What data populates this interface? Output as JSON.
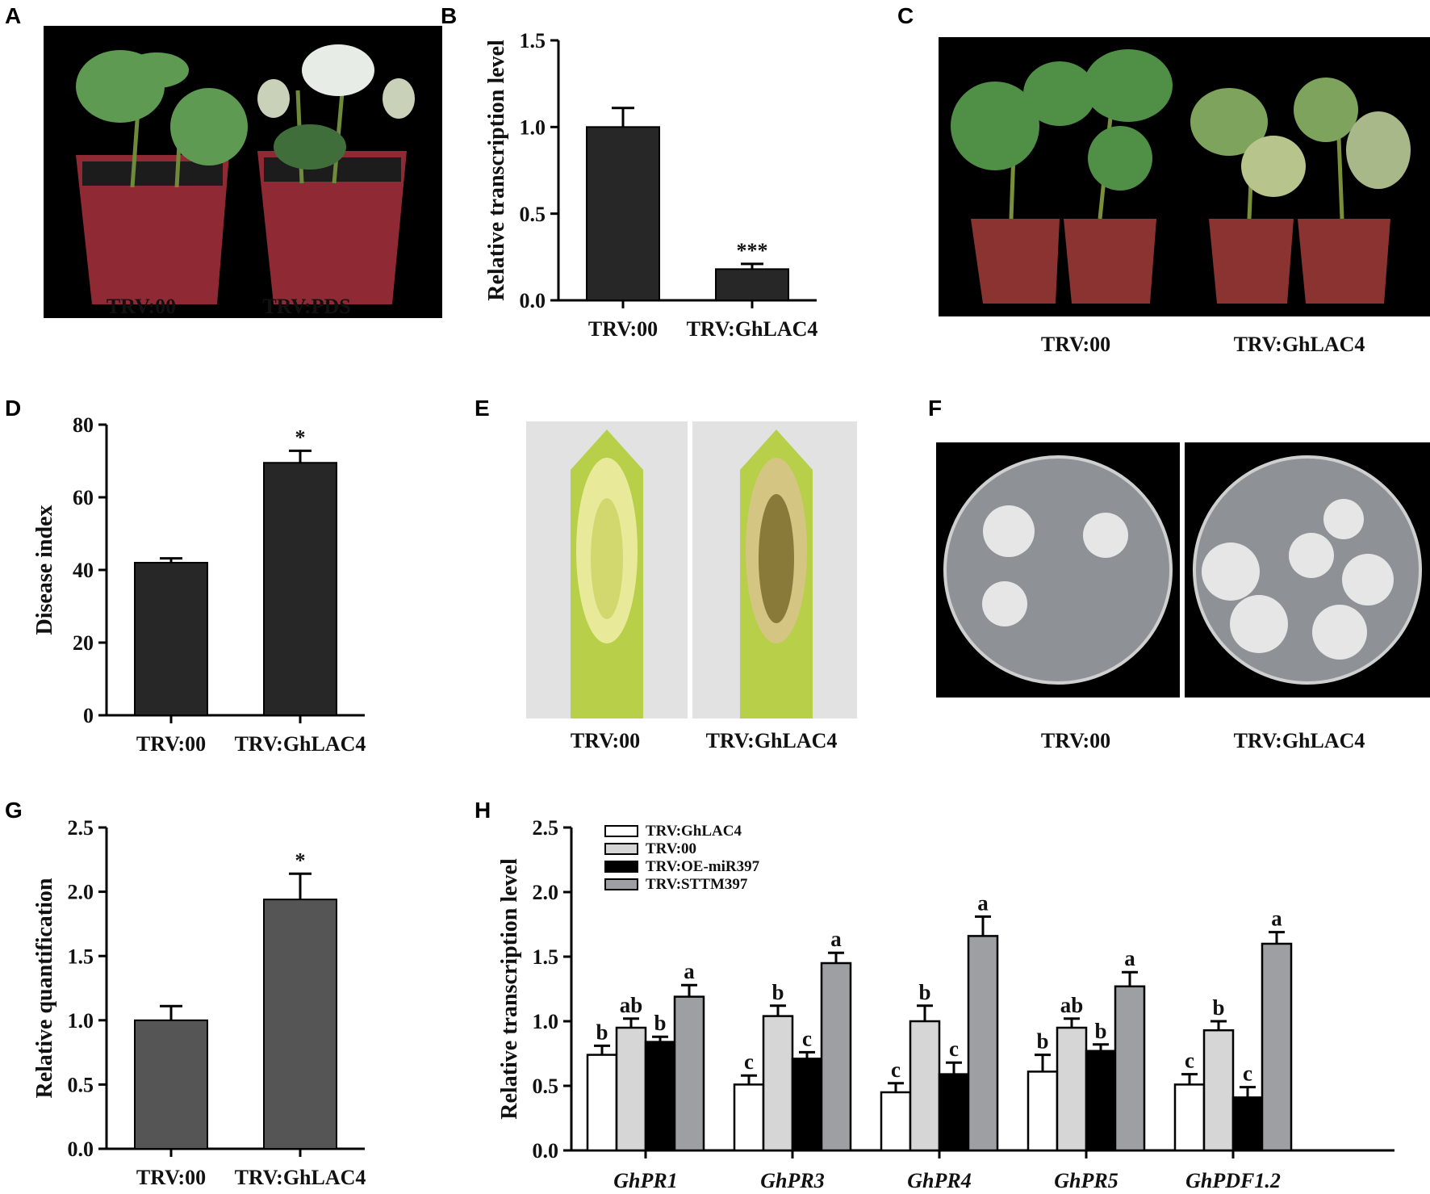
{
  "panels": {
    "a": {
      "letter": "A",
      "captions": [
        "TRV:00",
        "TRV:PDS"
      ],
      "bg": "#000000",
      "leaf": "#5e9a52",
      "pot": "#8f2a35"
    },
    "b": {
      "letter": "B"
    },
    "c": {
      "letter": "C",
      "captions": [
        "TRV:00",
        "TRV:GhLAC4"
      ],
      "bg": "#000000",
      "leaf": "#4f8f46",
      "pot": "#8a3330"
    },
    "d": {
      "letter": "D"
    },
    "e": {
      "letter": "E",
      "captions": [
        "TRV:00",
        "TRV:GhLAC4"
      ],
      "stem": "#b8cf4a"
    },
    "f": {
      "letter": "F",
      "captions": [
        "TRV:00",
        "TRV:GhLAC4"
      ],
      "dish": "#8e9296",
      "colony": "#e6e6e6"
    },
    "g": {
      "letter": "G"
    },
    "h": {
      "letter": "H"
    }
  },
  "chart_data": [
    {
      "id": "B",
      "type": "bar",
      "categories": [
        "TRV:00",
        "TRV:GhLAC4"
      ],
      "values": [
        1.0,
        0.18
      ],
      "errors": [
        0.11,
        0.03
      ],
      "annotations": [
        "",
        "***"
      ],
      "ylabel": "Relative transcription level",
      "ylim": [
        0,
        1.5
      ],
      "yticks": [
        "0.0",
        "0.5",
        "1.0",
        "1.5"
      ],
      "bar_color": "#272727"
    },
    {
      "id": "D",
      "type": "bar",
      "categories": [
        "TRV:00",
        "TRV:GhLAC4"
      ],
      "values": [
        42,
        69.5
      ],
      "errors": [
        1.2,
        3.3
      ],
      "annotations": [
        "",
        "*"
      ],
      "ylabel": "Disease index",
      "ylim": [
        0,
        80
      ],
      "yticks": [
        "0",
        "20",
        "40",
        "60",
        "80"
      ],
      "bar_color": "#272727"
    },
    {
      "id": "G",
      "type": "bar",
      "categories": [
        "TRV:00",
        "TRV:GhLAC4"
      ],
      "values": [
        1.0,
        1.94
      ],
      "errors": [
        0.11,
        0.2
      ],
      "annotations": [
        "",
        "*"
      ],
      "ylabel": "Relative quantification",
      "ylim": [
        0,
        2.5
      ],
      "yticks": [
        "0.0",
        "0.5",
        "1.0",
        "1.5",
        "2.0",
        "2.5"
      ],
      "bar_color": "#555555"
    },
    {
      "id": "H",
      "type": "bar",
      "categories": [
        "GhPR1",
        "GhPR3",
        "GhPR4",
        "GhPR5",
        "GhPDF1.2"
      ],
      "series": [
        {
          "name": "TRV:GhLAC4",
          "values": [
            0.74,
            0.51,
            0.45,
            0.61,
            0.51
          ],
          "errors": [
            0.07,
            0.07,
            0.07,
            0.13,
            0.08
          ],
          "letters": [
            "b",
            "c",
            "c",
            "b",
            "c"
          ],
          "color": "#ffffff"
        },
        {
          "name": "TRV:00",
          "values": [
            0.95,
            1.04,
            1.0,
            0.95,
            0.93
          ],
          "errors": [
            0.07,
            0.08,
            0.12,
            0.07,
            0.07
          ],
          "letters": [
            "ab",
            "b",
            "b",
            "ab",
            "b"
          ],
          "color": "#d6d6d6"
        },
        {
          "name": "TRV:OE-miR397",
          "values": [
            0.84,
            0.71,
            0.59,
            0.77,
            0.41
          ],
          "errors": [
            0.04,
            0.05,
            0.09,
            0.05,
            0.08
          ],
          "letters": [
            "b",
            "c",
            "c",
            "b",
            "c"
          ],
          "color": "#000000"
        },
        {
          "name": "TRV:STTM397",
          "values": [
            1.19,
            1.45,
            1.66,
            1.27,
            1.6
          ],
          "errors": [
            0.09,
            0.08,
            0.15,
            0.11,
            0.09
          ],
          "letters": [
            "a",
            "a",
            "a",
            "a",
            "a"
          ],
          "color": "#9d9fa3"
        }
      ],
      "ylabel": "Relative transcription level",
      "ylim": [
        0,
        2.5
      ],
      "yticks": [
        "0.0",
        "0.5",
        "1.0",
        "1.5",
        "2.0",
        "2.5"
      ],
      "legend": "top-left"
    }
  ]
}
